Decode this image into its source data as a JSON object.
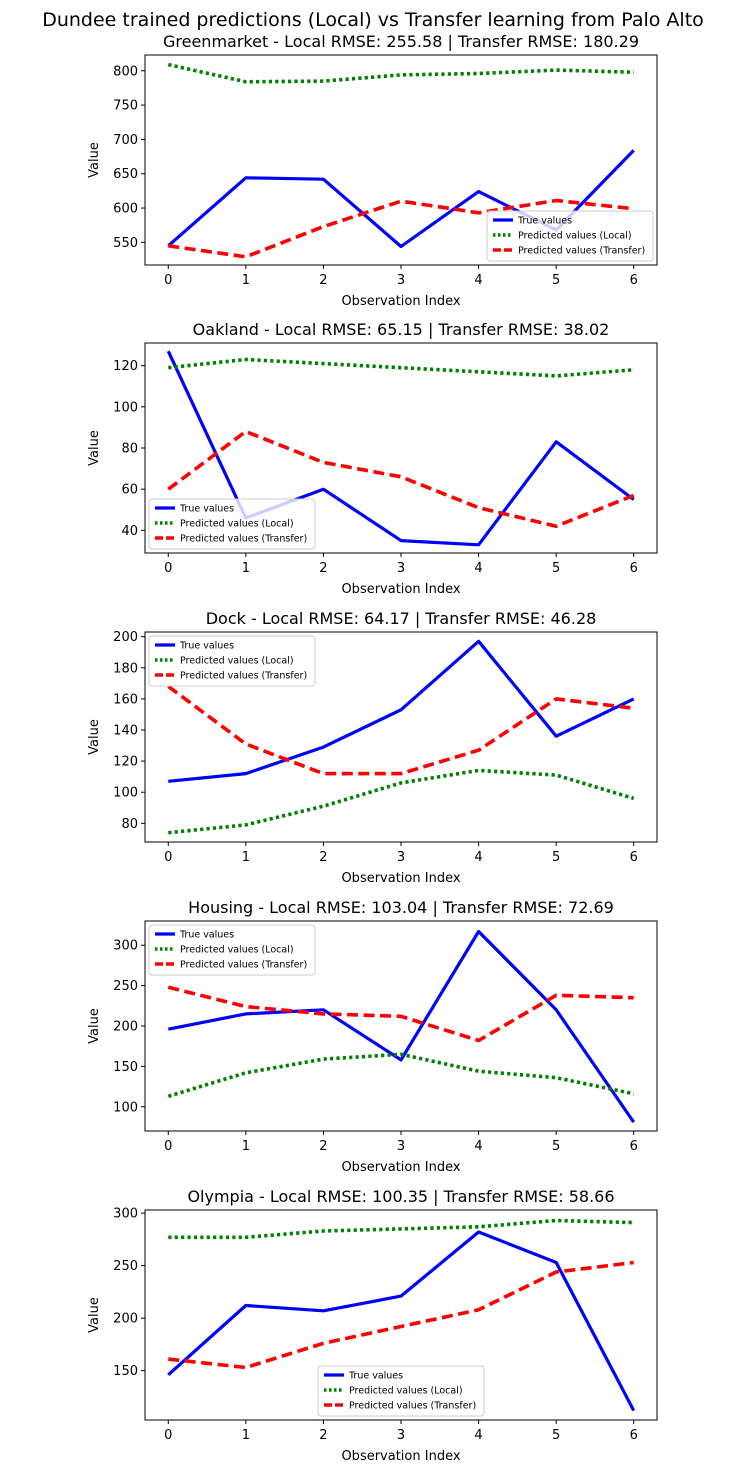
{
  "figure": {
    "suptitle": "Dundee trained predictions (Local) vs Transfer learning from Palo Alto"
  },
  "series_styles": [
    {
      "key": "true",
      "color": "#0000ff",
      "dash": "",
      "width": 3.2
    },
    {
      "key": "local",
      "color": "#008000",
      "dash": "3.2,3.2",
      "width": 3.6
    },
    {
      "key": "transfer",
      "color": "#ff0000",
      "dash": "11,5.5",
      "width": 3.6
    }
  ],
  "chart_data": [
    {
      "type": "line",
      "title": "Greenmarket - Local RMSE: 255.58 | Transfer RMSE: 180.29",
      "xlabel": "Observation Index",
      "ylabel": "Value",
      "x": [
        0,
        1,
        2,
        3,
        4,
        5,
        6
      ],
      "xticks": [
        0,
        1,
        2,
        3,
        4,
        5,
        6
      ],
      "yticks": [
        550,
        600,
        650,
        700,
        750,
        800
      ],
      "xlim": [
        -0.3,
        6.3
      ],
      "ylim": [
        517,
        823
      ],
      "legend": "lower-right",
      "series": [
        {
          "name": "True values",
          "values": [
            545,
            644,
            642,
            544,
            624,
            568,
            684
          ]
        },
        {
          "name": "Predicted values (Local)",
          "values": [
            809,
            784,
            785,
            794,
            796,
            801,
            798
          ]
        },
        {
          "name": "Predicted values (Transfer)",
          "values": [
            545,
            529,
            573,
            610,
            593,
            611,
            599
          ]
        }
      ]
    },
    {
      "type": "line",
      "title": "Oakland - Local RMSE: 65.15 | Transfer RMSE: 38.02",
      "xlabel": "Observation Index",
      "ylabel": "Value",
      "x": [
        0,
        1,
        2,
        3,
        4,
        5,
        6
      ],
      "xticks": [
        0,
        1,
        2,
        3,
        4,
        5,
        6
      ],
      "yticks": [
        40,
        60,
        80,
        100,
        120
      ],
      "xlim": [
        -0.3,
        6.3
      ],
      "ylim": [
        29,
        131
      ],
      "legend": "lower-left",
      "series": [
        {
          "name": "True values",
          "values": [
            127,
            46,
            60,
            35,
            33,
            83,
            55
          ]
        },
        {
          "name": "Predicted values (Local)",
          "values": [
            119,
            123,
            121,
            119,
            117,
            115,
            118
          ]
        },
        {
          "name": "Predicted values (Transfer)",
          "values": [
            60,
            88,
            73,
            66,
            51,
            42,
            57
          ]
        }
      ]
    },
    {
      "type": "line",
      "title": "Dock - Local RMSE: 64.17 | Transfer RMSE: 46.28",
      "xlabel": "Observation Index",
      "ylabel": "Value",
      "x": [
        0,
        1,
        2,
        3,
        4,
        5,
        6
      ],
      "xticks": [
        0,
        1,
        2,
        3,
        4,
        5,
        6
      ],
      "yticks": [
        80,
        100,
        120,
        140,
        160,
        180,
        200
      ],
      "xlim": [
        -0.3,
        6.3
      ],
      "ylim": [
        68,
        203
      ],
      "legend": "upper-left",
      "series": [
        {
          "name": "True values",
          "values": [
            107,
            112,
            129,
            153,
            197,
            136,
            160
          ]
        },
        {
          "name": "Predicted values (Local)",
          "values": [
            74,
            79,
            91,
            106,
            114,
            111,
            96
          ]
        },
        {
          "name": "Predicted values (Transfer)",
          "values": [
            168,
            131,
            112,
            112,
            127,
            160,
            154
          ]
        }
      ]
    },
    {
      "type": "line",
      "title": "Housing - Local RMSE: 103.04 | Transfer RMSE: 72.69",
      "xlabel": "Observation Index",
      "ylabel": "Value",
      "x": [
        0,
        1,
        2,
        3,
        4,
        5,
        6
      ],
      "xticks": [
        0,
        1,
        2,
        3,
        4,
        5,
        6
      ],
      "yticks": [
        100,
        150,
        200,
        250,
        300
      ],
      "xlim": [
        -0.3,
        6.3
      ],
      "ylim": [
        70,
        330
      ],
      "legend": "upper-left",
      "series": [
        {
          "name": "True values",
          "values": [
            196,
            215,
            220,
            158,
            317,
            220,
            81
          ]
        },
        {
          "name": "Predicted values (Local)",
          "values": [
            113,
            142,
            159,
            165,
            144,
            136,
            116
          ]
        },
        {
          "name": "Predicted values (Transfer)",
          "values": [
            248,
            224,
            215,
            212,
            182,
            238,
            235
          ]
        }
      ]
    },
    {
      "type": "line",
      "title": "Olympia - Local RMSE: 100.35 | Transfer RMSE: 58.66",
      "xlabel": "Observation Index",
      "ylabel": "Value",
      "x": [
        0,
        1,
        2,
        3,
        4,
        5,
        6
      ],
      "xticks": [
        0,
        1,
        2,
        3,
        4,
        5,
        6
      ],
      "yticks": [
        150,
        200,
        250,
        300
      ],
      "xlim": [
        -0.3,
        6.3
      ],
      "ylim": [
        103,
        303
      ],
      "legend": "lower-center",
      "series": [
        {
          "name": "True values",
          "values": [
            146,
            212,
            207,
            221,
            282,
            253,
            112
          ]
        },
        {
          "name": "Predicted values (Local)",
          "values": [
            277,
            277,
            283,
            285,
            287,
            293,
            291
          ]
        },
        {
          "name": "Predicted values (Transfer)",
          "values": [
            161,
            153,
            176,
            192,
            208,
            244,
            253
          ]
        }
      ]
    }
  ]
}
